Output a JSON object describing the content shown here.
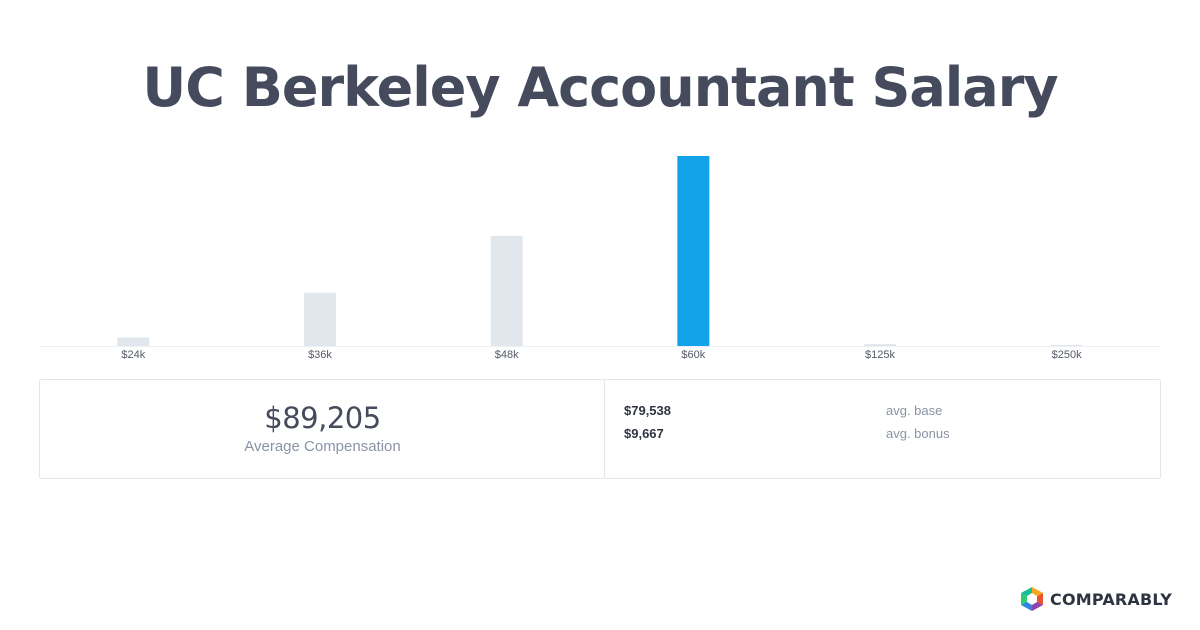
{
  "title": "UC Berkeley Accountant Salary",
  "chart_data": {
    "type": "bar",
    "categories": [
      "$24k",
      "$36k",
      "$48k",
      "$60k",
      "$125k",
      "$250k"
    ],
    "values": [
      4.5,
      28,
      58,
      100,
      1,
      0.5
    ],
    "highlight_index": 3,
    "colors": {
      "bar": "#e1e7ed",
      "highlight": "#12a3e8",
      "baseline": "#eef1f4"
    },
    "ylim": [
      0,
      100
    ]
  },
  "summary": {
    "average_value": "$89,205",
    "average_label": "Average Compensation",
    "rows": [
      {
        "amount": "$79,538",
        "label": "avg. base"
      },
      {
        "amount": "$9,667",
        "label": "avg. bonus"
      }
    ]
  },
  "brand": {
    "name": "COMPARABLY",
    "logo_icon": "comparably-logo-icon"
  }
}
